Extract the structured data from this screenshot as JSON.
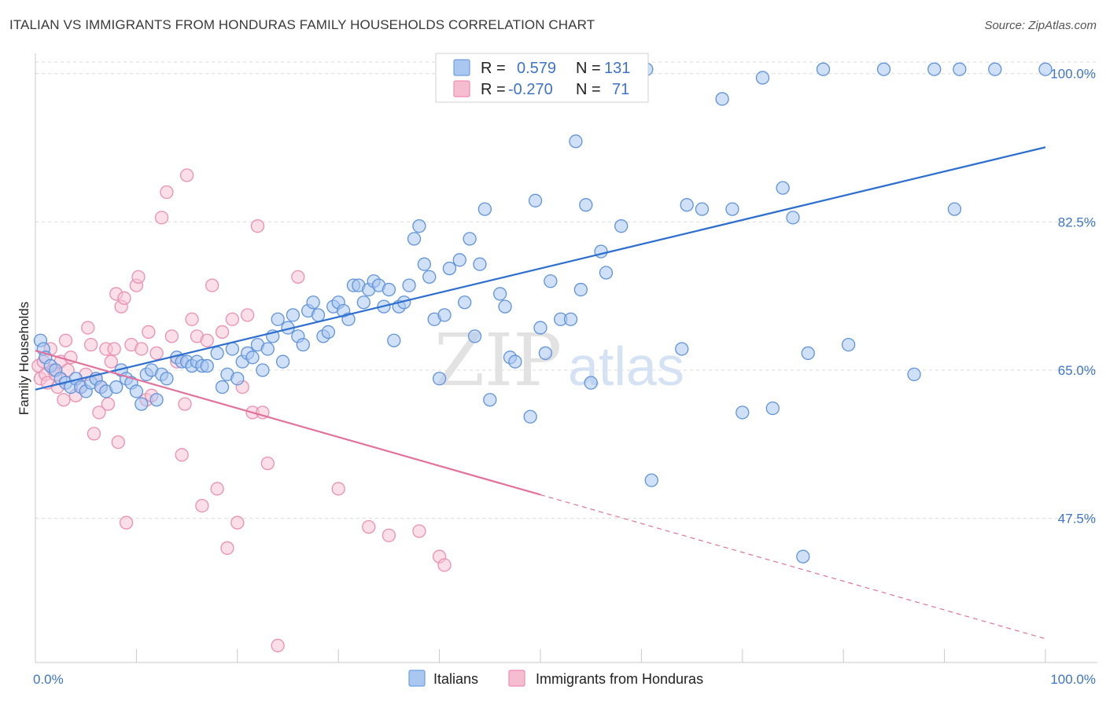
{
  "title": "ITALIAN VS IMMIGRANTS FROM HONDURAS FAMILY HOUSEHOLDS CORRELATION CHART",
  "source": "Source: ZipAtlas.com",
  "watermark": {
    "zip": "ZIP",
    "atlas": "atlas"
  },
  "stats_box": {
    "r_label": "R =",
    "n_label": "N =",
    "rows": [
      {
        "r": "0.579",
        "n": "131",
        "color": "#6f9fe0"
      },
      {
        "r": "-0.270",
        "n": "71",
        "color": "#f08bb0"
      }
    ]
  },
  "legend": [
    {
      "label": "Italians",
      "color": "#a9c7f0"
    },
    {
      "label": "Immigrants from Honduras",
      "color": "#f6bdd0"
    }
  ],
  "colors": {
    "blue_fill": "#a9c7f0",
    "blue_stroke": "#5f93da",
    "blue_line": "#2d6fd0",
    "pink_fill": "#f6c4d5",
    "pink_stroke": "#ec8fb0",
    "pink_line": "#e2719b"
  },
  "chart_data": {
    "type": "scatter",
    "title": "ITALIAN VS IMMIGRANTS FROM HONDURAS FAMILY HOUSEHOLDS CORRELATION CHART",
    "xlabel": "",
    "ylabel": "Family Households",
    "xlim": [
      0,
      100
    ],
    "ylim": [
      30.5,
      102
    ],
    "x_tick_labels": [
      "0.0%",
      "100.0%"
    ],
    "y_ticks": [
      47.5,
      65.0,
      82.5,
      100.0
    ],
    "y_tick_labels": [
      "47.5%",
      "65.0%",
      "82.5%",
      "100.0%"
    ],
    "grid": true,
    "legend_position": "bottom-center",
    "series": [
      {
        "name": "Italians",
        "R": 0.579,
        "N": 131,
        "trend": {
          "x": [
            0,
            100
          ],
          "y": [
            62.7,
            91.3
          ],
          "style": "solid"
        },
        "points": [
          [
            0.5,
            68.5
          ],
          [
            0.8,
            67.5
          ],
          [
            1,
            66.5
          ],
          [
            1.5,
            65.5
          ],
          [
            2,
            65
          ],
          [
            2.5,
            64
          ],
          [
            3,
            63.5
          ],
          [
            3.5,
            63
          ],
          [
            4,
            64
          ],
          [
            4.5,
            63
          ],
          [
            5,
            62.5
          ],
          [
            5.5,
            63.5
          ],
          [
            6,
            64
          ],
          [
            6.5,
            63
          ],
          [
            7,
            62.5
          ],
          [
            8,
            63
          ],
          [
            8.5,
            65
          ],
          [
            9,
            64
          ],
          [
            9.5,
            63.5
          ],
          [
            10,
            62.5
          ],
          [
            10.5,
            61
          ],
          [
            11,
            64.5
          ],
          [
            11.5,
            65
          ],
          [
            12,
            61.5
          ],
          [
            12.5,
            64.5
          ],
          [
            13,
            64
          ],
          [
            14,
            66.5
          ],
          [
            14.5,
            66
          ],
          [
            15,
            66
          ],
          [
            15.5,
            65.5
          ],
          [
            16,
            66
          ],
          [
            16.5,
            65.5
          ],
          [
            17,
            65.5
          ],
          [
            18,
            67
          ],
          [
            18.5,
            63
          ],
          [
            19,
            64.5
          ],
          [
            19.5,
            67.5
          ],
          [
            20,
            64
          ],
          [
            20.5,
            66
          ],
          [
            21,
            67
          ],
          [
            21.5,
            66.5
          ],
          [
            22,
            68
          ],
          [
            22.5,
            65
          ],
          [
            23,
            67.5
          ],
          [
            23.5,
            69
          ],
          [
            24,
            71
          ],
          [
            24.5,
            66
          ],
          [
            25,
            70
          ],
          [
            25.5,
            71.5
          ],
          [
            26,
            69
          ],
          [
            26.5,
            68
          ],
          [
            27,
            72
          ],
          [
            27.5,
            73
          ],
          [
            28,
            71.5
          ],
          [
            28.5,
            69
          ],
          [
            29,
            69.5
          ],
          [
            29.5,
            72.5
          ],
          [
            30,
            73
          ],
          [
            30.5,
            72
          ],
          [
            31,
            71
          ],
          [
            31.5,
            75
          ],
          [
            32,
            75
          ],
          [
            32.5,
            73
          ],
          [
            33,
            74.5
          ],
          [
            33.5,
            75.5
          ],
          [
            34,
            75
          ],
          [
            34.5,
            72.5
          ],
          [
            35,
            74.5
          ],
          [
            35.5,
            68.5
          ],
          [
            36,
            72.5
          ],
          [
            36.5,
            73
          ],
          [
            37,
            75
          ],
          [
            37.5,
            80.5
          ],
          [
            38,
            82
          ],
          [
            38.5,
            77.5
          ],
          [
            39,
            76
          ],
          [
            39.5,
            71
          ],
          [
            40,
            64
          ],
          [
            40.5,
            71.5
          ],
          [
            41,
            77
          ],
          [
            42,
            78
          ],
          [
            42.5,
            73
          ],
          [
            43,
            80.5
          ],
          [
            43.5,
            69
          ],
          [
            44,
            77.5
          ],
          [
            44.5,
            84
          ],
          [
            45,
            61.5
          ],
          [
            46,
            74
          ],
          [
            46.5,
            72.5
          ],
          [
            47,
            66.5
          ],
          [
            47.5,
            66
          ],
          [
            49,
            59.5
          ],
          [
            49.5,
            85
          ],
          [
            50,
            70
          ],
          [
            50.5,
            67
          ],
          [
            51,
            75.5
          ],
          [
            52,
            71
          ],
          [
            53,
            71
          ],
          [
            53.5,
            92
          ],
          [
            54,
            74.5
          ],
          [
            54.5,
            84.5
          ],
          [
            55,
            63.5
          ],
          [
            56,
            79
          ],
          [
            56.5,
            76.5
          ],
          [
            58,
            82
          ],
          [
            60.5,
            100.5
          ],
          [
            61,
            52
          ],
          [
            64,
            67.5
          ],
          [
            64.5,
            84.5
          ],
          [
            66,
            84
          ],
          [
            68,
            97
          ],
          [
            69,
            84
          ],
          [
            70,
            60
          ],
          [
            72,
            99.5
          ],
          [
            73,
            60.5
          ],
          [
            74,
            86.5
          ],
          [
            75,
            83
          ],
          [
            76,
            43
          ],
          [
            76.5,
            67
          ],
          [
            78,
            100.5
          ],
          [
            80.5,
            68
          ],
          [
            84,
            100.5
          ],
          [
            87,
            64.5
          ],
          [
            89,
            100.5
          ],
          [
            91,
            84
          ],
          [
            91.5,
            100.5
          ],
          [
            95,
            100.5
          ],
          [
            100,
            100.5
          ]
        ]
      },
      {
        "name": "Immigrants from Honduras",
        "R": -0.27,
        "N": 71,
        "trend": {
          "x": [
            0,
            50,
            100
          ],
          "y": [
            67.3,
            50.3,
            33.3
          ],
          "style": "solid-then-dashed"
        },
        "points": [
          [
            0.3,
            65.5
          ],
          [
            0.5,
            64
          ],
          [
            0.8,
            66
          ],
          [
            1,
            64.5
          ],
          [
            1.2,
            63.5
          ],
          [
            1.5,
            67.5
          ],
          [
            1.8,
            65
          ],
          [
            2,
            64.5
          ],
          [
            2.2,
            63
          ],
          [
            2.5,
            66
          ],
          [
            2.8,
            61.5
          ],
          [
            3,
            68.5
          ],
          [
            3.2,
            65
          ],
          [
            3.5,
            66.5
          ],
          [
            4,
            62
          ],
          [
            4.5,
            63
          ],
          [
            5,
            64.5
          ],
          [
            5.2,
            70
          ],
          [
            5.5,
            68
          ],
          [
            5.8,
            57.5
          ],
          [
            6,
            64
          ],
          [
            6.3,
            60
          ],
          [
            6.5,
            63
          ],
          [
            7,
            67.5
          ],
          [
            7.2,
            61
          ],
          [
            7.5,
            66
          ],
          [
            7.8,
            67.5
          ],
          [
            8,
            74
          ],
          [
            8.2,
            56.5
          ],
          [
            8.5,
            72.5
          ],
          [
            8.8,
            73.5
          ],
          [
            9,
            47
          ],
          [
            9.5,
            68
          ],
          [
            10,
            75
          ],
          [
            10.2,
            76
          ],
          [
            10.5,
            67.5
          ],
          [
            11,
            61.5
          ],
          [
            11.2,
            69.5
          ],
          [
            11.5,
            62
          ],
          [
            12,
            67
          ],
          [
            12.5,
            83
          ],
          [
            13,
            86
          ],
          [
            13.5,
            69
          ],
          [
            14,
            66
          ],
          [
            14.5,
            55
          ],
          [
            14.8,
            61
          ],
          [
            15,
            88
          ],
          [
            15.5,
            71
          ],
          [
            16,
            69
          ],
          [
            16.5,
            49
          ],
          [
            17,
            68.5
          ],
          [
            17.5,
            75
          ],
          [
            18,
            51
          ],
          [
            18.5,
            69.5
          ],
          [
            19,
            44
          ],
          [
            19.5,
            71
          ],
          [
            20,
            47
          ],
          [
            20.5,
            63
          ],
          [
            21,
            71.5
          ],
          [
            21.5,
            60
          ],
          [
            22,
            82
          ],
          [
            22.5,
            60
          ],
          [
            23,
            54
          ],
          [
            24,
            32.5
          ],
          [
            26,
            76
          ],
          [
            30,
            51
          ],
          [
            33,
            46.5
          ],
          [
            35,
            45.5
          ],
          [
            38,
            46
          ],
          [
            40,
            43
          ],
          [
            40.5,
            42
          ]
        ]
      }
    ]
  }
}
